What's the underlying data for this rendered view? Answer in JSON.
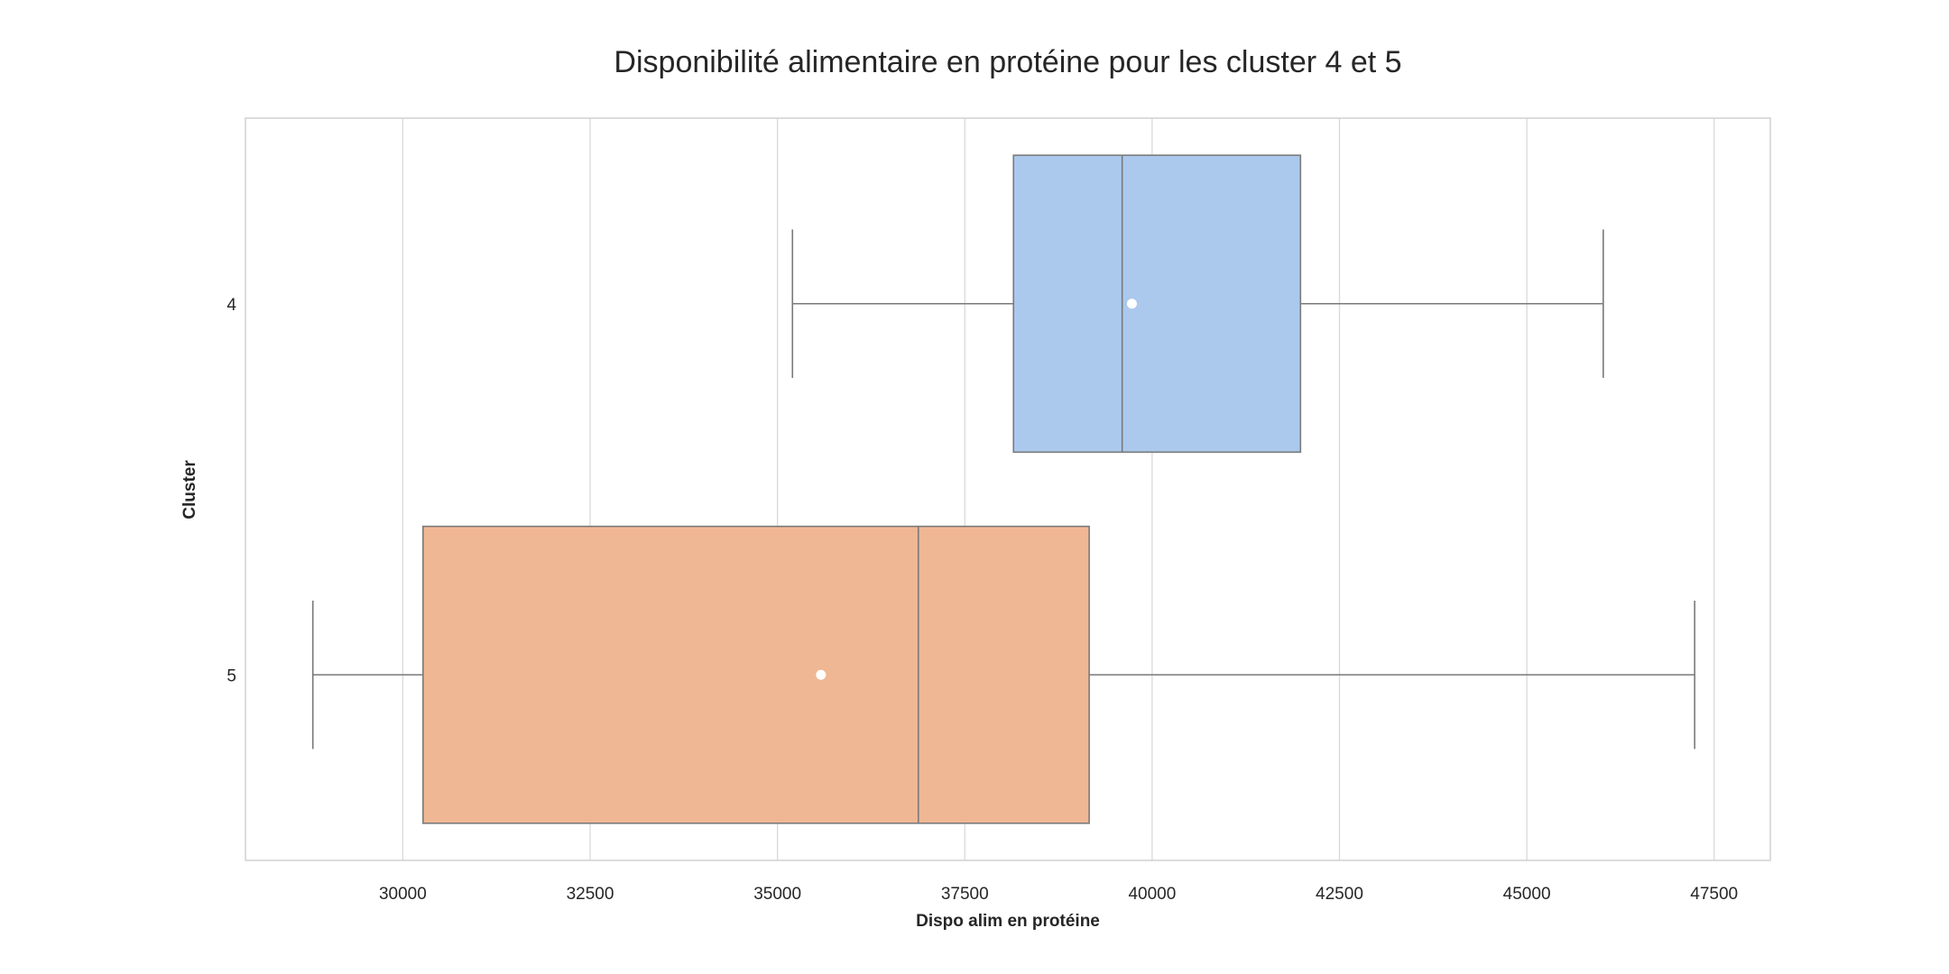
{
  "chart_data": {
    "type": "boxplot",
    "orientation": "horizontal",
    "title": "Disponibilité alimentaire en protéine pour les cluster 4 et 5",
    "xlabel": "Dispo alim en protéine",
    "ylabel": "Cluster",
    "xlim": [
      27900,
      48250
    ],
    "xticks": [
      30000,
      32500,
      35000,
      37500,
      40000,
      42500,
      45000,
      47500
    ],
    "xtick_labels": [
      "30000",
      "32500",
      "35000",
      "37500",
      "40000",
      "42500",
      "45000",
      "47500"
    ],
    "categories": [
      "4",
      "5"
    ],
    "grid": true,
    "show_means": true,
    "series": [
      {
        "category": "4",
        "whisker_low": 35200,
        "q1": 38150,
        "median": 39600,
        "q3": 41980,
        "whisker_high": 46020,
        "mean": 39730,
        "color": "#abc9ed"
      },
      {
        "category": "5",
        "whisker_low": 28800,
        "q1": 30270,
        "median": 36880,
        "q3": 39160,
        "whisker_high": 47240,
        "mean": 35580,
        "color": "#f0b794"
      }
    ],
    "colors": {
      "box_edge": "#7a7a7a",
      "grid": "#d9d9d9",
      "frame": "#d0d0d0",
      "mean_marker": "#ffffff"
    }
  }
}
